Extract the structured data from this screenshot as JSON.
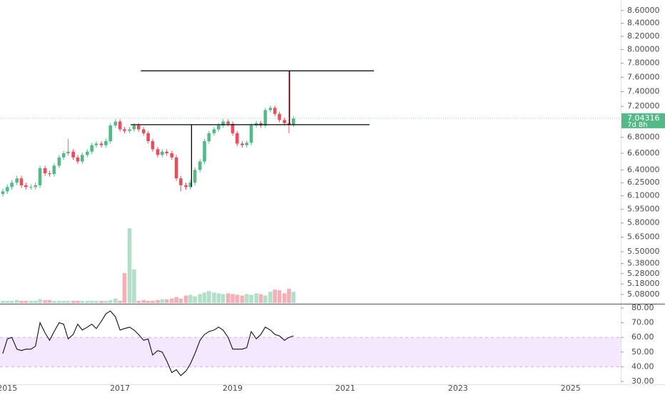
{
  "chart_data": {
    "type": "candlestick",
    "log_scale": true,
    "colors": {
      "up": "#53b987",
      "down": "#eb4d5c"
    },
    "x": [
      2014.92,
      2015.0,
      2015.08,
      2015.17,
      2015.25,
      2015.33,
      2015.42,
      2015.5,
      2015.58,
      2015.67,
      2015.75,
      2015.83,
      2015.92,
      2016.0,
      2016.08,
      2016.17,
      2016.25,
      2016.33,
      2016.42,
      2016.5,
      2016.58,
      2016.67,
      2016.75,
      2016.83,
      2016.92,
      2017.0,
      2017.08,
      2017.17,
      2017.25,
      2017.33,
      2017.42,
      2017.5,
      2017.58,
      2017.67,
      2017.75,
      2017.83,
      2017.92,
      2018.0,
      2018.08,
      2018.17,
      2018.25,
      2018.33,
      2018.42,
      2018.5,
      2018.58,
      2018.67,
      2018.75,
      2018.83,
      2018.92,
      2019.0,
      2019.08,
      2019.17,
      2019.25,
      2019.33,
      2019.42,
      2019.5,
      2019.58,
      2019.67,
      2019.75,
      2019.83,
      2019.92,
      2020.0,
      2020.08
    ],
    "open": [
      6.12,
      6.15,
      6.2,
      6.25,
      6.3,
      6.22,
      6.2,
      6.2,
      6.22,
      6.42,
      6.36,
      6.35,
      6.45,
      6.55,
      6.6,
      6.62,
      6.55,
      6.5,
      6.58,
      6.62,
      6.7,
      6.72,
      6.7,
      6.75,
      6.95,
      7.0,
      6.9,
      6.88,
      6.9,
      6.95,
      6.9,
      6.85,
      6.75,
      6.65,
      6.58,
      6.62,
      6.6,
      6.55,
      6.3,
      6.22,
      6.2,
      6.25,
      6.4,
      6.5,
      6.75,
      6.85,
      6.9,
      6.95,
      7.0,
      6.97,
      6.85,
      6.72,
      6.7,
      6.73,
      6.95,
      6.98,
      6.95,
      7.15,
      7.18,
      7.1,
      7.02,
      6.98,
      6.96
    ],
    "high": [
      6.18,
      6.23,
      6.28,
      6.33,
      6.33,
      6.25,
      6.23,
      6.25,
      6.45,
      6.45,
      6.39,
      6.48,
      6.58,
      6.63,
      6.78,
      6.65,
      6.58,
      6.61,
      6.65,
      6.73,
      6.75,
      6.75,
      6.78,
      6.98,
      7.03,
      7.03,
      6.93,
      6.93,
      6.98,
      6.98,
      6.93,
      6.88,
      6.78,
      6.68,
      6.65,
      6.65,
      6.63,
      6.58,
      6.33,
      6.25,
      6.28,
      6.43,
      6.53,
      6.78,
      6.88,
      6.93,
      6.98,
      7.03,
      7.03,
      7.0,
      6.88,
      6.75,
      6.76,
      6.98,
      7.01,
      7.01,
      7.18,
      7.21,
      7.21,
      7.13,
      7.05,
      7.7,
      7.07
    ],
    "low": [
      6.09,
      6.12,
      6.17,
      6.22,
      6.19,
      6.17,
      6.17,
      6.17,
      6.19,
      6.33,
      6.32,
      6.32,
      6.42,
      6.52,
      6.57,
      6.52,
      6.47,
      6.47,
      6.55,
      6.59,
      6.67,
      6.67,
      6.67,
      6.72,
      6.92,
      6.87,
      6.85,
      6.85,
      6.87,
      6.87,
      6.82,
      6.72,
      6.62,
      6.55,
      6.55,
      6.57,
      6.52,
      6.27,
      6.15,
      6.17,
      6.17,
      6.22,
      6.37,
      6.47,
      6.72,
      6.82,
      6.87,
      6.92,
      6.94,
      6.82,
      6.69,
      6.67,
      6.67,
      6.7,
      6.92,
      6.92,
      6.92,
      7.12,
      7.07,
      6.99,
      6.95,
      6.85,
      6.93
    ],
    "close": [
      6.15,
      6.2,
      6.25,
      6.3,
      6.22,
      6.2,
      6.2,
      6.22,
      6.42,
      6.36,
      6.35,
      6.45,
      6.55,
      6.6,
      6.62,
      6.55,
      6.5,
      6.58,
      6.62,
      6.7,
      6.72,
      6.7,
      6.75,
      6.95,
      7.0,
      6.9,
      6.88,
      6.9,
      6.95,
      6.9,
      6.85,
      6.75,
      6.65,
      6.58,
      6.62,
      6.6,
      6.55,
      6.3,
      6.22,
      6.2,
      6.25,
      6.4,
      6.5,
      6.75,
      6.85,
      6.9,
      6.95,
      7.0,
      6.97,
      6.85,
      6.72,
      6.7,
      6.73,
      6.95,
      6.98,
      6.95,
      7.15,
      7.18,
      7.1,
      7.02,
      6.98,
      6.96,
      7.04
    ],
    "volume": [
      3,
      3,
      3,
      4,
      3,
      3,
      3,
      3,
      5,
      4,
      4,
      3,
      3,
      3,
      3,
      3,
      3,
      3,
      3,
      3,
      3,
      3,
      3,
      4,
      6,
      3,
      40,
      100,
      45,
      3,
      4,
      3,
      3,
      4,
      5,
      5,
      6,
      8,
      6,
      10,
      11,
      9,
      12,
      14,
      16,
      14,
      13,
      12,
      13,
      12,
      11,
      10,
      12,
      11,
      13,
      12,
      10,
      15,
      18,
      17,
      13,
      19,
      15
    ],
    "volume_ylim": [
      0,
      105
    ],
    "xlim": [
      2014.87,
      2025.89
    ],
    "xticks": [
      2015,
      2017,
      2019,
      2021,
      2023,
      2025
    ],
    "ylim": [
      5.0,
      8.77
    ],
    "yticks": [
      {
        "value": 8.6,
        "label": "8.60000"
      },
      {
        "value": 8.4,
        "label": "8.40000"
      },
      {
        "value": 8.2,
        "label": "8.20000"
      },
      {
        "value": 8.0,
        "label": "8.00000"
      },
      {
        "value": 7.8,
        "label": "7.80000"
      },
      {
        "value": 7.6,
        "label": "7.60000"
      },
      {
        "value": 7.4,
        "label": "7.40000"
      },
      {
        "value": 7.2,
        "label": "7.20000"
      },
      {
        "value": 6.8,
        "label": "6.80000"
      },
      {
        "value": 6.6,
        "label": "6.60000"
      },
      {
        "value": 6.4,
        "label": "6.40000"
      },
      {
        "value": 6.25,
        "label": "6.25000"
      },
      {
        "value": 6.1,
        "label": "6.10000"
      },
      {
        "value": 5.95,
        "label": "5.95000"
      },
      {
        "value": 5.8,
        "label": "5.80000"
      },
      {
        "value": 5.65,
        "label": "5.65000"
      },
      {
        "value": 5.5,
        "label": "5.50000"
      },
      {
        "value": 5.38,
        "label": "5.38000"
      },
      {
        "value": 5.28,
        "label": "5.28000"
      },
      {
        "value": 5.18,
        "label": "5.18000"
      },
      {
        "value": 5.08,
        "label": "5.08000"
      }
    ],
    "last_price": 7.04316,
    "countdown": "7d 8h",
    "drawings": [
      {
        "x": [
          2017.37,
          2021.51
        ],
        "y": [
          7.69,
          7.69
        ]
      },
      {
        "x": [
          2017.19,
          2021.43
        ],
        "y": [
          6.96,
          6.96
        ]
      },
      {
        "x": [
          2018.27,
          2018.27
        ],
        "y": [
          6.96,
          6.2
        ]
      },
      {
        "x": [
          2020.01,
          2020.01
        ],
        "y": [
          7.69,
          6.96
        ]
      }
    ],
    "rsi": {
      "values": [
        49,
        59,
        60,
        52,
        51,
        52,
        52,
        54,
        70,
        63,
        58,
        64,
        70,
        69,
        59,
        62,
        69,
        65,
        67,
        69,
        66,
        71,
        76,
        78,
        74,
        65,
        66,
        67,
        65,
        62,
        58,
        59,
        48,
        51,
        50,
        44,
        36,
        38,
        34,
        37,
        42,
        49,
        58,
        62,
        64,
        65,
        67,
        65,
        60,
        52,
        52,
        52,
        53,
        64,
        59,
        62,
        67,
        65,
        62,
        61,
        58,
        60,
        61
      ],
      "ylim": [
        30,
        80
      ],
      "band": [
        40,
        60
      ],
      "yticks": [
        {
          "value": 80,
          "label": "80.00"
        },
        {
          "value": 70,
          "label": "70.00"
        },
        {
          "value": 60,
          "label": "60.00"
        },
        {
          "value": 50,
          "label": "50.00"
        },
        {
          "value": 40,
          "label": "40.00"
        },
        {
          "value": 30,
          "label": "30.00"
        }
      ]
    }
  }
}
